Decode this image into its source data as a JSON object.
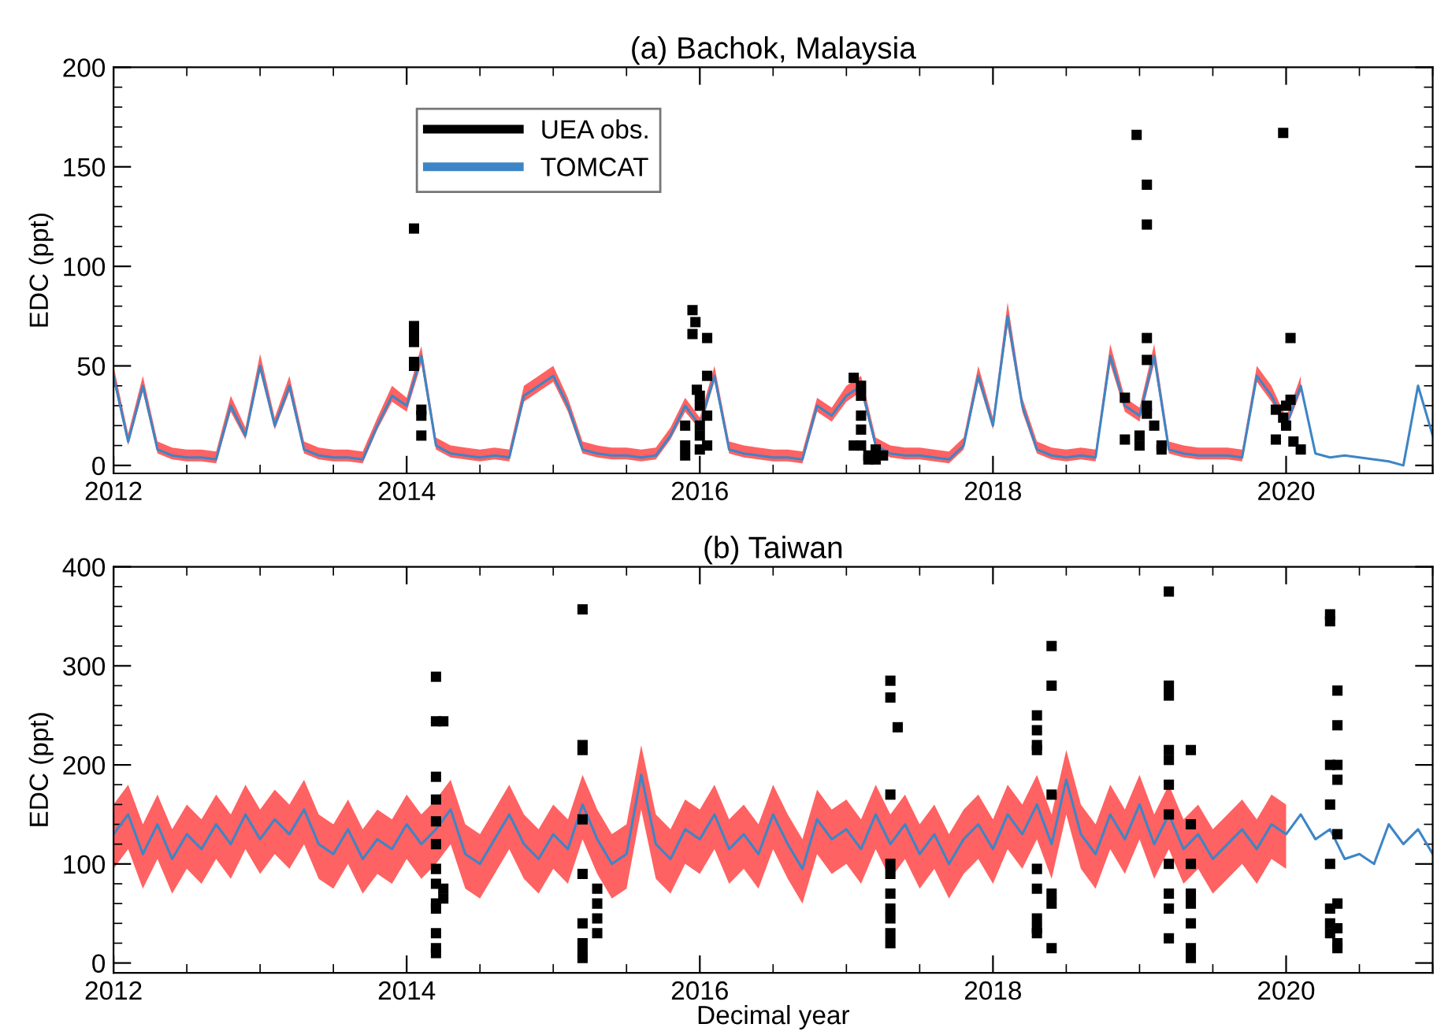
{
  "chart_data": [
    {
      "type": "line",
      "title": "(a) Bachok, Malaysia",
      "ylabel": "EDC (ppt)",
      "xlim": [
        2012,
        2021
      ],
      "xticks": [
        2012,
        2014,
        2016,
        2018,
        2020
      ],
      "ylim": [
        -4,
        200
      ],
      "yticks": [
        0,
        50,
        100,
        150,
        200
      ],
      "legend": "top left",
      "grid": false,
      "series": [
        {
          "name": "UEA obs.",
          "type": "scatter",
          "marker": "square",
          "color": "#000000",
          "x": [
            2014.05,
            2014.05,
            2014.05,
            2014.05,
            2014.05,
            2014.05,
            2014.1,
            2014.1,
            2014.1,
            2015.95,
            2015.95,
            2015.97,
            2016.05,
            2016.05,
            2015.98,
            2015.9,
            2015.9,
            2015.9,
            2016.0,
            2016.0,
            2016.0,
            2016.0,
            2016.0,
            2016.05,
            2016.05,
            2017.05,
            2017.1,
            2017.1,
            2017.1,
            2017.1,
            2017.1,
            2017.15,
            2017.15,
            2017.2,
            2017.25,
            2017.2,
            2017.05,
            2018.98,
            2019.05,
            2019.05,
            2019.05,
            2019.05,
            2018.9,
            2019.05,
            2019.05,
            2019.1,
            2018.9,
            2019.0,
            2019.0,
            2019.15,
            2019.15,
            2019.98,
            2020.03,
            2020.03,
            2019.93,
            2019.98,
            2020.0,
            2020.0,
            2020.05,
            2020.1,
            2019.93
          ],
          "values": [
            119,
            70,
            67,
            62,
            52,
            50,
            28,
            25,
            15,
            78,
            66,
            72,
            64,
            45,
            38,
            5,
            10,
            20,
            35,
            30,
            20,
            15,
            8,
            25,
            10,
            44,
            40,
            35,
            25,
            18,
            10,
            5,
            3,
            8,
            5,
            3,
            10,
            166,
            141,
            121,
            64,
            53,
            34,
            30,
            26,
            20,
            13,
            15,
            10,
            10,
            8,
            167,
            64,
            33,
            28,
            24,
            30,
            20,
            12,
            8,
            13
          ]
        },
        {
          "name": "TOMCAT",
          "color": "#3d85c6",
          "x": [
            2012.0,
            2012.1,
            2012.2,
            2012.3,
            2012.4,
            2012.5,
            2012.6,
            2012.7,
            2012.8,
            2012.9,
            2013.0,
            2013.1,
            2013.2,
            2013.3,
            2013.4,
            2013.5,
            2013.6,
            2013.7,
            2013.8,
            2013.9,
            2014.0,
            2014.1,
            2014.2,
            2014.3,
            2014.4,
            2014.5,
            2014.6,
            2014.7,
            2014.8,
            2014.9,
            2015.0,
            2015.1,
            2015.2,
            2015.3,
            2015.4,
            2015.5,
            2015.6,
            2015.7,
            2015.8,
            2015.9,
            2016.0,
            2016.1,
            2016.2,
            2016.3,
            2016.4,
            2016.5,
            2016.6,
            2016.7,
            2016.8,
            2016.9,
            2017.0,
            2017.1,
            2017.2,
            2017.3,
            2017.4,
            2017.5,
            2017.6,
            2017.7,
            2017.8,
            2017.9,
            2018.0,
            2018.1,
            2018.2,
            2018.3,
            2018.4,
            2018.5,
            2018.6,
            2018.7,
            2018.8,
            2018.9,
            2019.0,
            2019.1,
            2019.2,
            2019.3,
            2019.4,
            2019.5,
            2019.6,
            2019.7,
            2019.8,
            2019.9,
            2020.0,
            2020.1,
            2020.2,
            2020.3,
            2020.4,
            2020.5,
            2020.6,
            2020.7,
            2020.8,
            2020.9,
            2021.0
          ],
          "values": [
            45,
            12,
            40,
            8,
            5,
            4,
            4,
            3,
            30,
            15,
            50,
            20,
            40,
            8,
            5,
            4,
            4,
            3,
            20,
            35,
            30,
            55,
            10,
            6,
            5,
            4,
            5,
            4,
            35,
            40,
            45,
            30,
            8,
            6,
            5,
            5,
            4,
            5,
            15,
            30,
            20,
            45,
            8,
            6,
            5,
            4,
            4,
            3,
            30,
            25,
            35,
            40,
            10,
            6,
            5,
            5,
            4,
            3,
            10,
            45,
            20,
            75,
            30,
            8,
            5,
            4,
            5,
            4,
            55,
            30,
            25,
            55,
            8,
            6,
            5,
            5,
            5,
            4,
            45,
            35,
            20,
            40,
            6,
            4,
            5,
            4,
            3,
            2,
            0,
            40,
            15
          ],
          "upper": [
            50,
            16,
            45,
            12,
            9,
            8,
            8,
            7,
            35,
            19,
            56,
            24,
            45,
            12,
            9,
            8,
            8,
            7,
            24,
            40,
            34,
            60,
            14,
            10,
            9,
            8,
            9,
            8,
            40,
            45,
            50,
            34,
            12,
            10,
            9,
            9,
            8,
            9,
            19,
            34,
            24,
            50,
            12,
            10,
            9,
            8,
            8,
            7,
            34,
            29,
            40,
            45,
            14,
            10,
            9,
            9,
            8,
            7,
            14,
            50,
            24,
            82,
            34,
            12,
            9,
            8,
            9,
            8,
            61,
            34,
            29,
            61,
            12,
            10,
            9,
            9,
            9,
            8,
            50,
            40,
            24,
            45,
            null,
            null,
            null,
            null,
            null,
            null,
            null,
            null,
            null
          ],
          "lower": [
            42,
            10,
            37,
            6,
            3,
            2,
            2,
            1,
            27,
            13,
            47,
            18,
            37,
            6,
            3,
            2,
            2,
            1,
            18,
            32,
            27,
            51,
            8,
            4,
            3,
            2,
            3,
            2,
            32,
            37,
            42,
            27,
            6,
            4,
            3,
            3,
            2,
            3,
            13,
            27,
            18,
            42,
            6,
            4,
            3,
            2,
            2,
            1,
            27,
            22,
            32,
            37,
            8,
            4,
            3,
            3,
            2,
            1,
            8,
            42,
            18,
            70,
            27,
            6,
            3,
            2,
            3,
            2,
            51,
            27,
            22,
            51,
            6,
            4,
            3,
            3,
            3,
            2,
            42,
            32,
            18,
            37,
            null,
            null,
            null,
            null,
            null,
            null,
            null,
            null,
            null
          ]
        }
      ]
    },
    {
      "type": "line",
      "title": "(b) Taiwan",
      "xlabel": "Decimal year",
      "ylabel": "EDC (ppt)",
      "xlim": [
        2012,
        2021
      ],
      "xticks": [
        2012,
        2014,
        2016,
        2018,
        2020
      ],
      "ylim": [
        -10,
        400
      ],
      "yticks": [
        0,
        100,
        200,
        300,
        400
      ],
      "grid": false,
      "series": [
        {
          "type": "scatter",
          "marker": "square",
          "color": "#000000",
          "x": [
            2014.2,
            2014.2,
            2014.2,
            2014.2,
            2014.2,
            2014.2,
            2014.2,
            2014.2,
            2014.2,
            2014.2,
            2014.2,
            2014.2,
            2014.2,
            2014.25,
            2014.25,
            2014.25,
            2015.2,
            2015.2,
            2015.2,
            2015.2,
            2015.2,
            2015.2,
            2015.2,
            2015.2,
            2015.2,
            2015.3,
            2015.3,
            2015.3,
            2015.3,
            2017.3,
            2017.3,
            2017.35,
            2017.3,
            2017.3,
            2017.3,
            2017.3,
            2017.3,
            2017.3,
            2017.3,
            2017.3,
            2018.3,
            2018.3,
            2018.3,
            2018.3,
            2018.3,
            2018.3,
            2018.3,
            2018.3,
            2018.4,
            2018.4,
            2018.4,
            2018.4,
            2018.4,
            2018.4,
            2018.3,
            2019.2,
            2019.2,
            2019.2,
            2019.2,
            2019.2,
            2019.2,
            2019.2,
            2019.2,
            2019.2,
            2019.2,
            2019.2,
            2019.35,
            2019.35,
            2019.35,
            2019.35,
            2019.35,
            2019.35,
            2019.35,
            2019.35,
            2020.3,
            2020.3,
            2020.3,
            2020.3,
            2020.3,
            2020.3,
            2020.3,
            2020.3,
            2020.35,
            2020.35,
            2020.35,
            2020.35,
            2020.35,
            2020.35,
            2020.35,
            2020.35,
            2020.35
          ],
          "values": [
            289,
            244,
            188,
            165,
            143,
            120,
            95,
            80,
            60,
            55,
            30,
            15,
            10,
            244,
            65,
            75,
            357,
            220,
            215,
            145,
            90,
            40,
            20,
            10,
            5,
            75,
            60,
            45,
            30,
            285,
            268,
            238,
            170,
            100,
            90,
            70,
            55,
            45,
            30,
            20,
            215,
            250,
            235,
            220,
            95,
            75,
            45,
            30,
            320,
            280,
            170,
            70,
            60,
            15,
            35,
            375,
            280,
            270,
            215,
            205,
            180,
            150,
            100,
            70,
            55,
            25,
            215,
            140,
            100,
            70,
            60,
            40,
            15,
            5,
            352,
            345,
            200,
            160,
            100,
            55,
            40,
            30,
            275,
            240,
            200,
            185,
            130,
            60,
            35,
            20,
            15
          ]
        },
        {
          "color": "#3d85c6",
          "x": [
            2012.0,
            2012.1,
            2012.2,
            2012.3,
            2012.4,
            2012.5,
            2012.6,
            2012.7,
            2012.8,
            2012.9,
            2013.0,
            2013.1,
            2013.2,
            2013.3,
            2013.4,
            2013.5,
            2013.6,
            2013.7,
            2013.8,
            2013.9,
            2014.0,
            2014.1,
            2014.2,
            2014.3,
            2014.4,
            2014.5,
            2014.6,
            2014.7,
            2014.8,
            2014.9,
            2015.0,
            2015.1,
            2015.2,
            2015.3,
            2015.4,
            2015.5,
            2015.6,
            2015.7,
            2015.8,
            2015.9,
            2016.0,
            2016.1,
            2016.2,
            2016.3,
            2016.4,
            2016.5,
            2016.6,
            2016.7,
            2016.8,
            2016.9,
            2017.0,
            2017.1,
            2017.2,
            2017.3,
            2017.4,
            2017.5,
            2017.6,
            2017.7,
            2017.8,
            2017.9,
            2018.0,
            2018.1,
            2018.2,
            2018.3,
            2018.4,
            2018.5,
            2018.6,
            2018.7,
            2018.8,
            2018.9,
            2019.0,
            2019.1,
            2019.2,
            2019.3,
            2019.4,
            2019.5,
            2019.6,
            2019.7,
            2019.8,
            2019.9,
            2020.0,
            2020.1,
            2020.2,
            2020.3,
            2020.4,
            2020.5,
            2020.6,
            2020.7,
            2020.8,
            2020.9,
            2021.0
          ],
          "values": [
            130,
            150,
            110,
            140,
            105,
            130,
            115,
            140,
            120,
            150,
            125,
            145,
            130,
            155,
            120,
            110,
            135,
            105,
            125,
            115,
            140,
            120,
            135,
            155,
            110,
            100,
            125,
            150,
            120,
            105,
            130,
            115,
            160,
            125,
            100,
            110,
            190,
            120,
            105,
            135,
            125,
            150,
            115,
            130,
            110,
            150,
            120,
            95,
            145,
            125,
            135,
            115,
            150,
            120,
            140,
            110,
            130,
            100,
            125,
            140,
            115,
            150,
            130,
            160,
            120,
            185,
            130,
            110,
            150,
            125,
            160,
            120,
            150,
            115,
            130,
            105,
            120,
            135,
            115,
            140,
            130,
            150,
            125,
            135,
            105,
            110,
            100,
            140,
            120,
            135,
            110
          ],
          "upper": [
            160,
            180,
            140,
            170,
            135,
            160,
            145,
            170,
            150,
            180,
            155,
            175,
            160,
            185,
            150,
            140,
            165,
            135,
            155,
            145,
            170,
            150,
            165,
            185,
            140,
            130,
            155,
            180,
            150,
            135,
            160,
            145,
            190,
            155,
            130,
            140,
            220,
            150,
            135,
            165,
            155,
            180,
            145,
            160,
            140,
            180,
            150,
            125,
            175,
            155,
            165,
            145,
            180,
            150,
            170,
            140,
            160,
            130,
            155,
            170,
            145,
            180,
            160,
            190,
            150,
            215,
            160,
            140,
            180,
            155,
            190,
            150,
            180,
            145,
            160,
            135,
            150,
            165,
            145,
            170,
            160,
            null,
            null,
            null,
            null,
            null,
            null,
            null,
            null,
            null,
            null
          ],
          "lower": [
            95,
            115,
            75,
            105,
            70,
            95,
            80,
            105,
            85,
            115,
            90,
            110,
            95,
            120,
            85,
            75,
            100,
            70,
            90,
            80,
            105,
            85,
            100,
            120,
            75,
            65,
            90,
            115,
            85,
            70,
            95,
            80,
            125,
            90,
            65,
            75,
            155,
            85,
            70,
            100,
            90,
            115,
            80,
            95,
            75,
            115,
            85,
            60,
            110,
            90,
            100,
            80,
            115,
            85,
            105,
            75,
            95,
            65,
            90,
            105,
            80,
            115,
            95,
            125,
            85,
            150,
            95,
            75,
            115,
            90,
            125,
            85,
            115,
            80,
            95,
            70,
            85,
            100,
            80,
            105,
            95,
            null,
            null,
            null,
            null,
            null,
            null,
            null,
            null,
            null,
            null
          ]
        }
      ]
    }
  ]
}
